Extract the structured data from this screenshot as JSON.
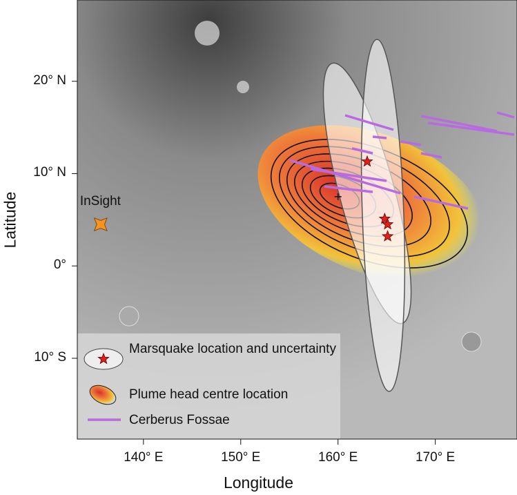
{
  "map": {
    "xlabel": "Longitude",
    "ylabel": "Latitude",
    "xlim": [
      133.2,
      178.4
    ],
    "ylim": [
      -18.75,
      28.8
    ],
    "xticks": [
      {
        "value": 140,
        "label": "140° E"
      },
      {
        "value": 150,
        "label": "150° E"
      },
      {
        "value": 160,
        "label": "160° E"
      },
      {
        "value": 170,
        "label": "170° E"
      }
    ],
    "yticks": [
      {
        "value": 20,
        "label": "20° N"
      },
      {
        "value": 10,
        "label": "10° N"
      },
      {
        "value": 0,
        "label": "0°"
      },
      {
        "value": -10,
        "label": "10° S"
      }
    ],
    "lander": {
      "label": "InSight",
      "lon": 135.6,
      "lat": 4.5
    },
    "marsquakes": [
      {
        "lon": 163,
        "lat": 11.3
      },
      {
        "lon": 164.8,
        "lat": 5.1
      },
      {
        "lon": 165.1,
        "lat": 4.5
      },
      {
        "lon": 165.1,
        "lat": 3.2
      }
    ],
    "plume_centre": {
      "lon": 160,
      "lat": 7.5
    },
    "legend": [
      "Marsquake location and uncertainty",
      "Plume head centre location",
      "Cerberus Fossae"
    ]
  }
}
